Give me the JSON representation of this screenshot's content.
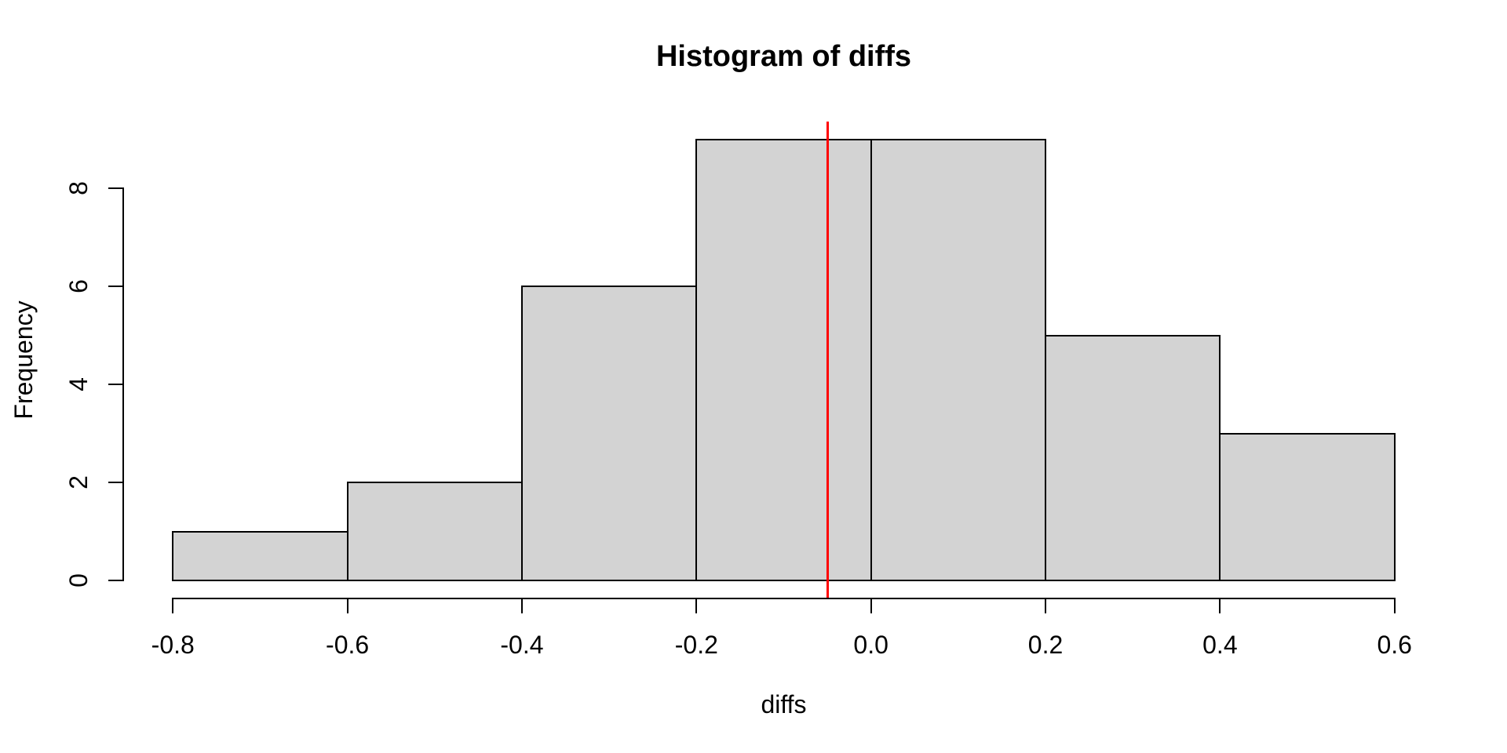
{
  "chart_data": {
    "type": "bar",
    "subtype": "histogram",
    "title": "Histogram of diffs",
    "xlabel": "diffs",
    "ylabel": "Frequency",
    "bin_breaks": [
      -0.8,
      -0.6,
      -0.4,
      -0.2,
      0.0,
      0.2,
      0.4,
      0.6
    ],
    "counts": [
      1,
      2,
      6,
      9,
      9,
      5,
      3
    ],
    "x_tick_values": [
      -0.8,
      -0.6,
      -0.4,
      -0.2,
      0.0,
      0.2,
      0.4,
      0.6
    ],
    "x_tick_labels": [
      "-0.8",
      "-0.6",
      "-0.4",
      "-0.2",
      "0.0",
      "0.2",
      "0.4",
      "0.6"
    ],
    "y_tick_values": [
      0,
      2,
      4,
      6,
      8
    ],
    "y_tick_labels": [
      "0",
      "2",
      "4",
      "6",
      "8"
    ],
    "xlim": [
      -0.8,
      0.6
    ],
    "ylim": [
      0,
      9
    ],
    "vline": {
      "value": -0.05,
      "color": "#FF0000"
    },
    "bar_fill": "#D3D3D3",
    "bar_border": "#000000",
    "axis_color": "#000000",
    "text_color": "#000000",
    "background": "#FFFFFF",
    "grid": false,
    "legend": "none"
  }
}
